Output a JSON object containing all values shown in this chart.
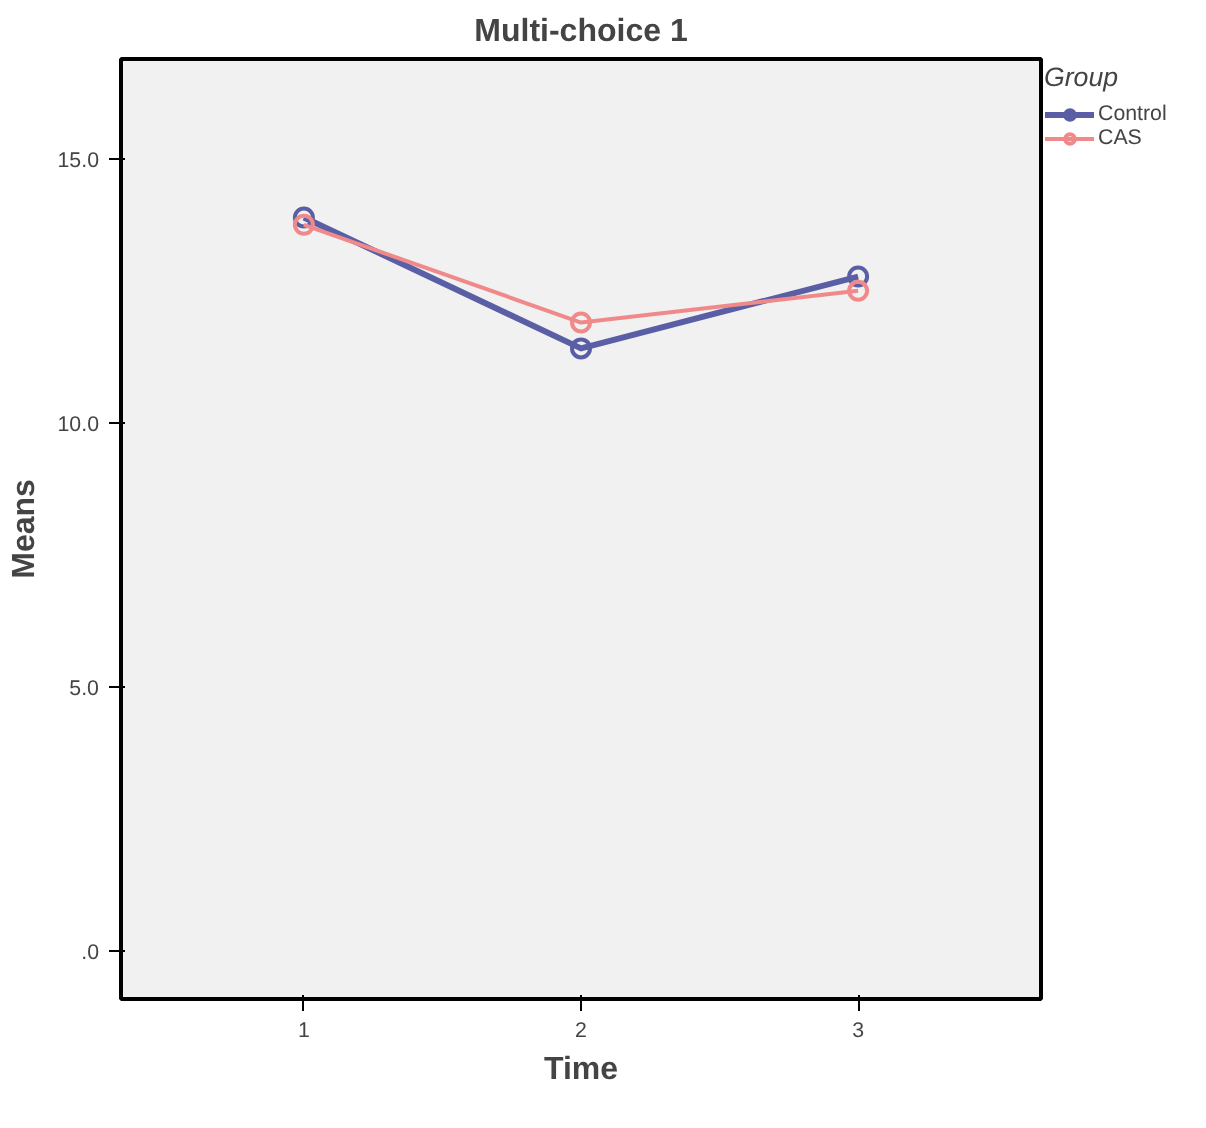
{
  "chart_data": {
    "type": "line",
    "title": "Multi-choice 1",
    "xlabel": "Time",
    "ylabel": "Means",
    "legend_title": "Group",
    "categories": [
      "1",
      "2",
      "3"
    ],
    "series": [
      {
        "name": "Control",
        "color": "#5a5fa5",
        "values": [
          13.9,
          11.42,
          12.78
        ]
      },
      {
        "name": "CAS",
        "color": "#f08a8a",
        "values": [
          13.76,
          11.91,
          12.51
        ]
      }
    ],
    "ylim": [
      -0.9,
      16.9
    ],
    "yticks": [
      {
        "value": 0,
        "label": ".0"
      },
      {
        "value": 5,
        "label": "5.0"
      },
      {
        "value": 10,
        "label": "10.0"
      },
      {
        "value": 15,
        "label": "15.0"
      }
    ],
    "marker": "circle",
    "line_style": "solid",
    "legend": "top right"
  }
}
